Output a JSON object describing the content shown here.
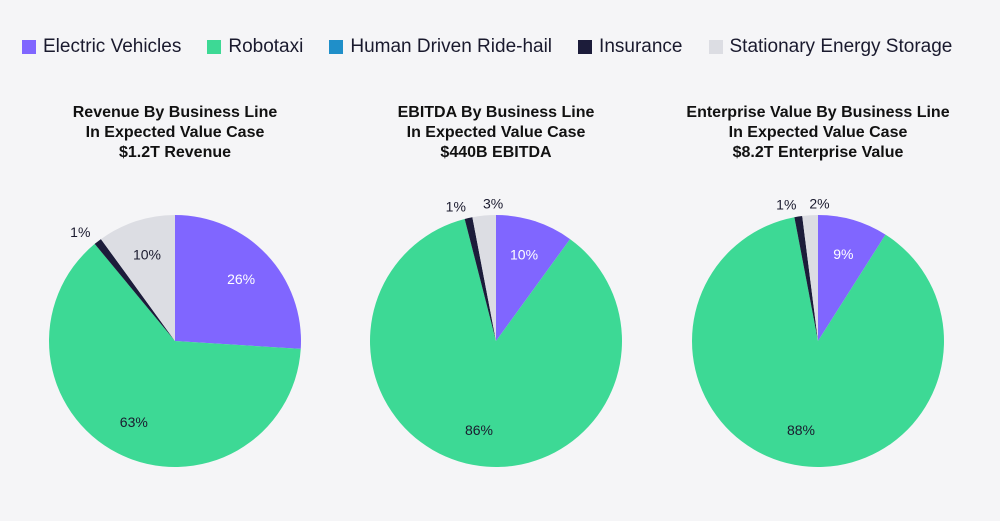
{
  "legend": [
    {
      "label": "Electric Vehicles",
      "color": "#8066ff"
    },
    {
      "label": "Robotaxi",
      "color": "#3dd995"
    },
    {
      "label": "Human Driven Ride-hail",
      "color": "#1f8fc9"
    },
    {
      "label": "Insurance",
      "color": "#1c1c3a"
    },
    {
      "label": "Stationary Energy Storage",
      "color": "#dcdde3"
    }
  ],
  "chart_data": [
    {
      "type": "pie",
      "title_lines": [
        "Revenue By Business Line",
        "In Expected Value Case",
        "$1.2T Revenue"
      ],
      "categories": [
        "Electric Vehicles",
        "Robotaxi",
        "Human Driven Ride-hail",
        "Insurance",
        "Stationary Energy Storage"
      ],
      "values": [
        26,
        63,
        0,
        1,
        10
      ],
      "labels": [
        "26%",
        "63%",
        "",
        "1%",
        "10%"
      ]
    },
    {
      "type": "pie",
      "title_lines": [
        "EBITDA By Business Line",
        "In Expected Value Case",
        "$440B EBITDA"
      ],
      "categories": [
        "Electric Vehicles",
        "Robotaxi",
        "Human Driven Ride-hail",
        "Insurance",
        "Stationary Energy Storage"
      ],
      "values": [
        10,
        86,
        0,
        1,
        3
      ],
      "labels": [
        "10%",
        "86%",
        "",
        "1%",
        "3%"
      ]
    },
    {
      "type": "pie",
      "title_lines": [
        "Enterprise Value By Business Line",
        "In Expected Value Case",
        "$8.2T Enterprise Value"
      ],
      "categories": [
        "Electric Vehicles",
        "Robotaxi",
        "Human Driven Ride-hail",
        "Insurance",
        "Stationary Energy Storage"
      ],
      "values": [
        9,
        88,
        0,
        1,
        2
      ],
      "labels": [
        "9%",
        "88%",
        "",
        "1%",
        "2%"
      ]
    }
  ]
}
